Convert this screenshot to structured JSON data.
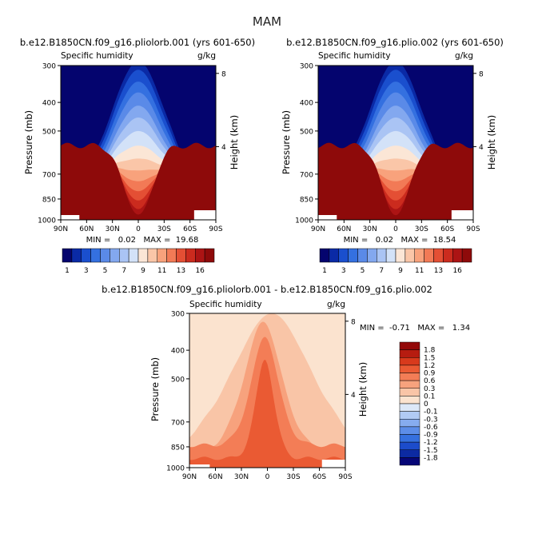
{
  "figure": {
    "title": "MAM"
  },
  "palette_fixed": [
    "#04046e",
    "#0a2aa6",
    "#1a4fce",
    "#3470e0",
    "#5a8ae8",
    "#83a8ef",
    "#aac4f4",
    "#d3e2f8",
    "#fbe6d6",
    "#fac6a8",
    "#f8a27c",
    "#f27a56",
    "#e44f34",
    "#cb2b1e",
    "#ac1414",
    "#8e0a0a"
  ],
  "palette_diff": [
    "#060677",
    "#0c2aa2",
    "#1c4ccb",
    "#3570df",
    "#5c8de8",
    "#86acef",
    "#b1cbf4",
    "#dce8f8",
    "#fbe3cf",
    "#f9c5a7",
    "#f7a27d",
    "#f37d56",
    "#ea5a33",
    "#d83a1c",
    "#b61c10",
    "#930808"
  ],
  "chart_data": [
    {
      "type": "contour",
      "title": "b.e12.B1850CN.f09_g16.pliolorb.001 (yrs 601-650)",
      "left_label": "Specific humidity",
      "right_label": "g/kg",
      "ylabel": "Pressure (mb)",
      "ylabel_right": "Height (km)",
      "x_ticks": [
        "90N",
        "60N",
        "30N",
        "0",
        "30S",
        "60S",
        "90S"
      ],
      "y_ticks": [
        300,
        400,
        500,
        700,
        850,
        1000
      ],
      "right_ticks": [
        8,
        4
      ],
      "xlim": [
        90,
        -90
      ],
      "ylim_mb": [
        1000,
        300
      ],
      "stats": "MIN =   0.02   MAX =  19.68",
      "levels": [
        1,
        2,
        3,
        4,
        5,
        6,
        7,
        8,
        9,
        10,
        11,
        12,
        13,
        14,
        16
      ],
      "colorbar_labels": [
        "1",
        "3",
        "5",
        "7",
        "9",
        "11",
        "13",
        "16"
      ],
      "bands": [
        {
          "base": 290,
          "peak": 950,
          "width": 45
        },
        {
          "base": 310,
          "peak": 890,
          "width": 41
        },
        {
          "base": 340,
          "peak": 850,
          "width": 38
        },
        {
          "base": 370,
          "peak": 815,
          "width": 35
        },
        {
          "base": 410,
          "peak": 780,
          "width": 32
        },
        {
          "base": 450,
          "peak": 750,
          "width": 30
        },
        {
          "base": 500,
          "peak": 725,
          "width": 28
        },
        {
          "base": 560,
          "peak": 700,
          "width": 26
        },
        {
          "base": 620,
          "peak": 680,
          "width": 24
        },
        {
          "base": 680,
          "peak": 660,
          "width": 22
        },
        {
          "base": 740,
          "peak": 640,
          "width": 20
        },
        {
          "base": 800,
          "peak": 620,
          "width": 18
        },
        {
          "base": 860,
          "peak": 600,
          "width": 17
        },
        {
          "base": 920,
          "peak": 580,
          "width": 16
        },
        {
          "base": 960,
          "peak": 560,
          "width": 15
        }
      ]
    },
    {
      "type": "contour",
      "title": "b.e12.B1850CN.f09_g16.plio.002 (yrs 601-650)",
      "left_label": "Specific humidity",
      "right_label": "g/kg",
      "ylabel": "Pressure (mb)",
      "ylabel_right": "Height (km)",
      "x_ticks": [
        "90N",
        "60N",
        "30N",
        "0",
        "30S",
        "60S",
        "90S"
      ],
      "y_ticks": [
        300,
        400,
        500,
        700,
        850,
        1000
      ],
      "right_ticks": [
        8,
        4
      ],
      "xlim": [
        90,
        -90
      ],
      "ylim_mb": [
        1000,
        300
      ],
      "stats": "MIN =   0.02   MAX =  18.54",
      "levels": [
        1,
        2,
        3,
        4,
        5,
        6,
        7,
        8,
        9,
        10,
        11,
        12,
        13,
        14,
        16
      ],
      "colorbar_labels": [
        "1",
        "3",
        "5",
        "7",
        "9",
        "11",
        "13",
        "16"
      ],
      "bands": [
        {
          "base": 290,
          "peak": 950,
          "width": 45
        },
        {
          "base": 310,
          "peak": 890,
          "width": 41
        },
        {
          "base": 340,
          "peak": 850,
          "width": 38
        },
        {
          "base": 370,
          "peak": 815,
          "width": 35
        },
        {
          "base": 410,
          "peak": 780,
          "width": 32
        },
        {
          "base": 450,
          "peak": 750,
          "width": 30
        },
        {
          "base": 500,
          "peak": 725,
          "width": 28
        },
        {
          "base": 560,
          "peak": 700,
          "width": 26
        },
        {
          "base": 620,
          "peak": 680,
          "width": 24
        },
        {
          "base": 680,
          "peak": 660,
          "width": 22
        },
        {
          "base": 740,
          "peak": 640,
          "width": 20
        },
        {
          "base": 800,
          "peak": 620,
          "width": 18
        },
        {
          "base": 860,
          "peak": 600,
          "width": 17
        },
        {
          "base": 920,
          "peak": 580,
          "width": 16
        },
        {
          "base": 965,
          "peak": 560,
          "width": 14
        }
      ]
    },
    {
      "type": "contour",
      "title": "b.e12.B1850CN.f09_g16.pliolorb.001 - b.e12.B1850CN.f09_g16.plio.002",
      "left_label": "Specific humidity",
      "right_label": "g/kg",
      "ylabel": "Pressure (mb)",
      "ylabel_right": "Height (km)",
      "x_ticks": [
        "90N",
        "60N",
        "30N",
        "0",
        "30S",
        "60S",
        "90S"
      ],
      "y_ticks": [
        300,
        400,
        500,
        700,
        850,
        1000
      ],
      "right_ticks": [
        8,
        4
      ],
      "xlim": [
        90,
        -90
      ],
      "ylim_mb": [
        1000,
        300
      ],
      "stats": "MIN =  -0.71   MAX =   1.34",
      "levels": [
        -1.8,
        -1.5,
        -1.2,
        -0.9,
        -0.6,
        -0.3,
        -0.1,
        0,
        0.1,
        0.3,
        0.6,
        0.9,
        1.2,
        1.5,
        1.8
      ],
      "colorbar_labels": [
        "1.8",
        "1.5",
        "1.2",
        "0.9",
        "0.6",
        "0.3",
        "0.1",
        "0",
        "-0.1",
        "-0.3",
        "-0.6",
        "-0.9",
        "-1.2",
        "-1.5",
        "-1.8"
      ],
      "background_band": 8,
      "bands": [
        {
          "index": 9,
          "base": 300,
          "peak": 975,
          "width": 60,
          "shift": -5
        },
        {
          "index": 10,
          "base": 320,
          "peak": 890,
          "width": 26,
          "shift": 5
        },
        {
          "index": 11,
          "base": 360,
          "peak": 840,
          "width": 18,
          "shift": 3
        },
        {
          "index": 12,
          "base": 430,
          "peak": 930,
          "width": 12,
          "shift": 3
        }
      ]
    }
  ]
}
